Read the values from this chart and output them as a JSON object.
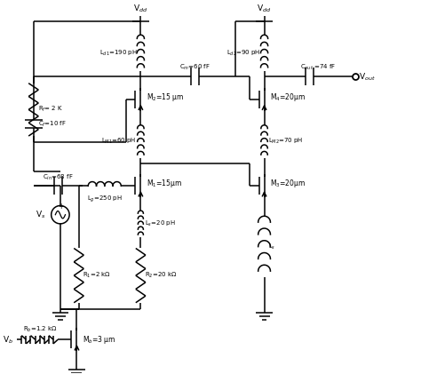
{
  "bg_color": "#ffffff",
  "line_color": "#000000",
  "text_color": "#000000",
  "figsize": [
    4.74,
    4.21
  ],
  "dpi": 100,
  "labels": {
    "Cf": "C$_f$=10 fF",
    "Rf": "R$_f$= 2 K",
    "Cin": "C$_{in}$=68 fF",
    "Lg": "L$_g$=250 pH",
    "Ls1": "L$_s$=20 pH",
    "LM1": "L$_{M1}$=60 pH",
    "Ld1": "L$_{d1}$=190 pH",
    "Cm": "C$_m$=60 fF",
    "M1": "M$_1$=15μm",
    "M2": "M$_2$=15 μm",
    "R1": "R$_1$=2 kΩ",
    "R2": "R$_2$=20 kΩ",
    "Ld2": "L$_{d2}$=90 pH",
    "Cout": "C$_{out}$ =74 fF",
    "M3": "M$_3$=20μm",
    "M4": "M$_4$=20μm",
    "LM2": "L$_{M2}$=70 pH",
    "Ls2": "L$_s$",
    "Rb": "R$_b$=1.2 kΩ",
    "Mb": "M$_b$=3 μm",
    "Vdd": "V$_{dd}$",
    "Vout": "V$_{out}$",
    "Vs": "V$_s$",
    "Vb": "V$_b$"
  }
}
